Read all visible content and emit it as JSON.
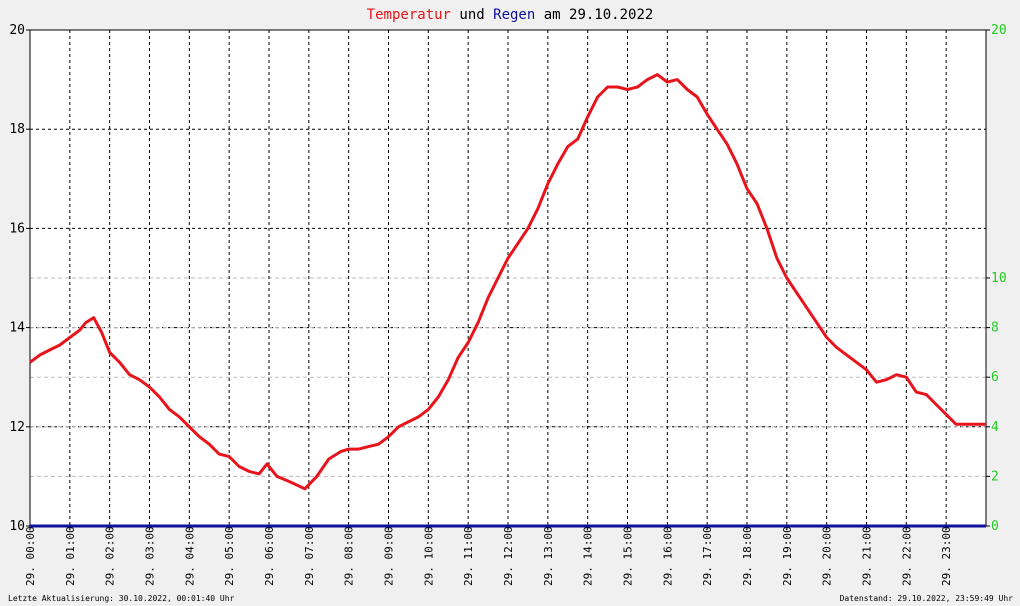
{
  "title": {
    "part1": "Temperatur",
    "part2": "und",
    "part3": "Regen",
    "part4": "am 29.10.2022"
  },
  "footer": {
    "left": "Letzte Aktualisierung: 30.10.2022, 00:01:40 Uhr",
    "right": "Datenstand: 29.10.2022, 23:59:49 Uhr"
  },
  "colors": {
    "temperature": "#e8141c",
    "rain": "#1010a0",
    "right_axis": "#22cc22",
    "background": "#f0f0f0",
    "plot_background": "#ffffff"
  },
  "chart_data": {
    "type": "line",
    "x_tick_labels": [
      "29. 00:00",
      "29. 01:00",
      "29. 02:00",
      "29. 03:00",
      "29. 04:00",
      "29. 05:00",
      "29. 06:00",
      "29. 07:00",
      "29. 08:00",
      "29. 09:00",
      "29. 10:00",
      "29. 11:00",
      "29. 12:00",
      "29. 13:00",
      "29. 14:00",
      "29. 15:00",
      "29. 16:00",
      "29. 17:00",
      "29. 18:00",
      "29. 19:00",
      "29. 20:00",
      "29. 21:00",
      "29. 22:00",
      "29. 23:00"
    ],
    "xlim_hours": [
      0,
      24
    ],
    "left_axis": {
      "ylim": [
        10,
        20
      ],
      "ticks": [
        10,
        12,
        14,
        16,
        18,
        20
      ]
    },
    "right_axis": {
      "ylim": [
        0,
        20
      ],
      "ticks": [
        "0",
        "2",
        "4",
        "6",
        "8",
        "10",
        "20"
      ],
      "tick_values": [
        0,
        2,
        4,
        6,
        8,
        10,
        20
      ]
    },
    "grid": true,
    "series": [
      {
        "name": "Temperatur",
        "axis": "left",
        "x_hours": [
          0,
          0.25,
          0.5,
          0.75,
          1.0,
          1.25,
          1.4,
          1.6,
          1.8,
          2.0,
          2.25,
          2.5,
          2.75,
          3.0,
          3.25,
          3.5,
          3.75,
          4.0,
          4.25,
          4.5,
          4.75,
          5.0,
          5.25,
          5.5,
          5.75,
          5.95,
          6.2,
          6.5,
          6.9,
          7.2,
          7.5,
          7.8,
          8.0,
          8.25,
          8.5,
          8.75,
          9.0,
          9.25,
          9.5,
          9.75,
          10.0,
          10.25,
          10.5,
          10.75,
          11.0,
          11.25,
          11.5,
          11.75,
          12.0,
          12.25,
          12.5,
          12.75,
          13.0,
          13.25,
          13.5,
          13.75,
          14.0,
          14.25,
          14.5,
          14.75,
          15.0,
          15.25,
          15.5,
          15.75,
          16.0,
          16.25,
          16.5,
          16.75,
          17.0,
          17.25,
          17.5,
          17.75,
          18.0,
          18.25,
          18.5,
          18.75,
          19.0,
          19.25,
          19.5,
          19.75,
          20.0,
          20.25,
          20.5,
          20.75,
          21.0,
          21.25,
          21.5,
          21.75,
          22.0,
          22.25,
          22.5,
          22.75,
          23.0,
          23.25,
          23.5,
          23.75,
          24.0
        ],
        "values": [
          13.3,
          13.45,
          13.55,
          13.65,
          13.8,
          13.95,
          14.1,
          14.2,
          13.9,
          13.5,
          13.3,
          13.05,
          12.95,
          12.8,
          12.6,
          12.35,
          12.2,
          12.0,
          11.8,
          11.65,
          11.45,
          11.4,
          11.2,
          11.1,
          11.05,
          11.25,
          11.0,
          10.9,
          10.75,
          11.0,
          11.35,
          11.5,
          11.55,
          11.55,
          11.6,
          11.65,
          11.8,
          12.0,
          12.1,
          12.2,
          12.35,
          12.6,
          12.95,
          13.4,
          13.7,
          14.1,
          14.6,
          15.0,
          15.4,
          15.7,
          16.0,
          16.4,
          16.9,
          17.3,
          17.65,
          17.8,
          18.25,
          18.65,
          18.85,
          18.85,
          18.8,
          18.85,
          19.0,
          19.1,
          18.95,
          19.0,
          18.8,
          18.65,
          18.3,
          18.0,
          17.7,
          17.3,
          16.8,
          16.5,
          16.0,
          15.4,
          15.0,
          14.7,
          14.4,
          14.1,
          13.8,
          13.6,
          13.45,
          13.3,
          13.15,
          12.9,
          12.95,
          13.05,
          13.0,
          12.7,
          12.65,
          12.45,
          12.25,
          12.05,
          12.05,
          12.05,
          12.05
        ]
      },
      {
        "name": "Regen",
        "axis": "right",
        "x_hours": [
          0,
          24
        ],
        "values": [
          0,
          0
        ]
      }
    ]
  }
}
